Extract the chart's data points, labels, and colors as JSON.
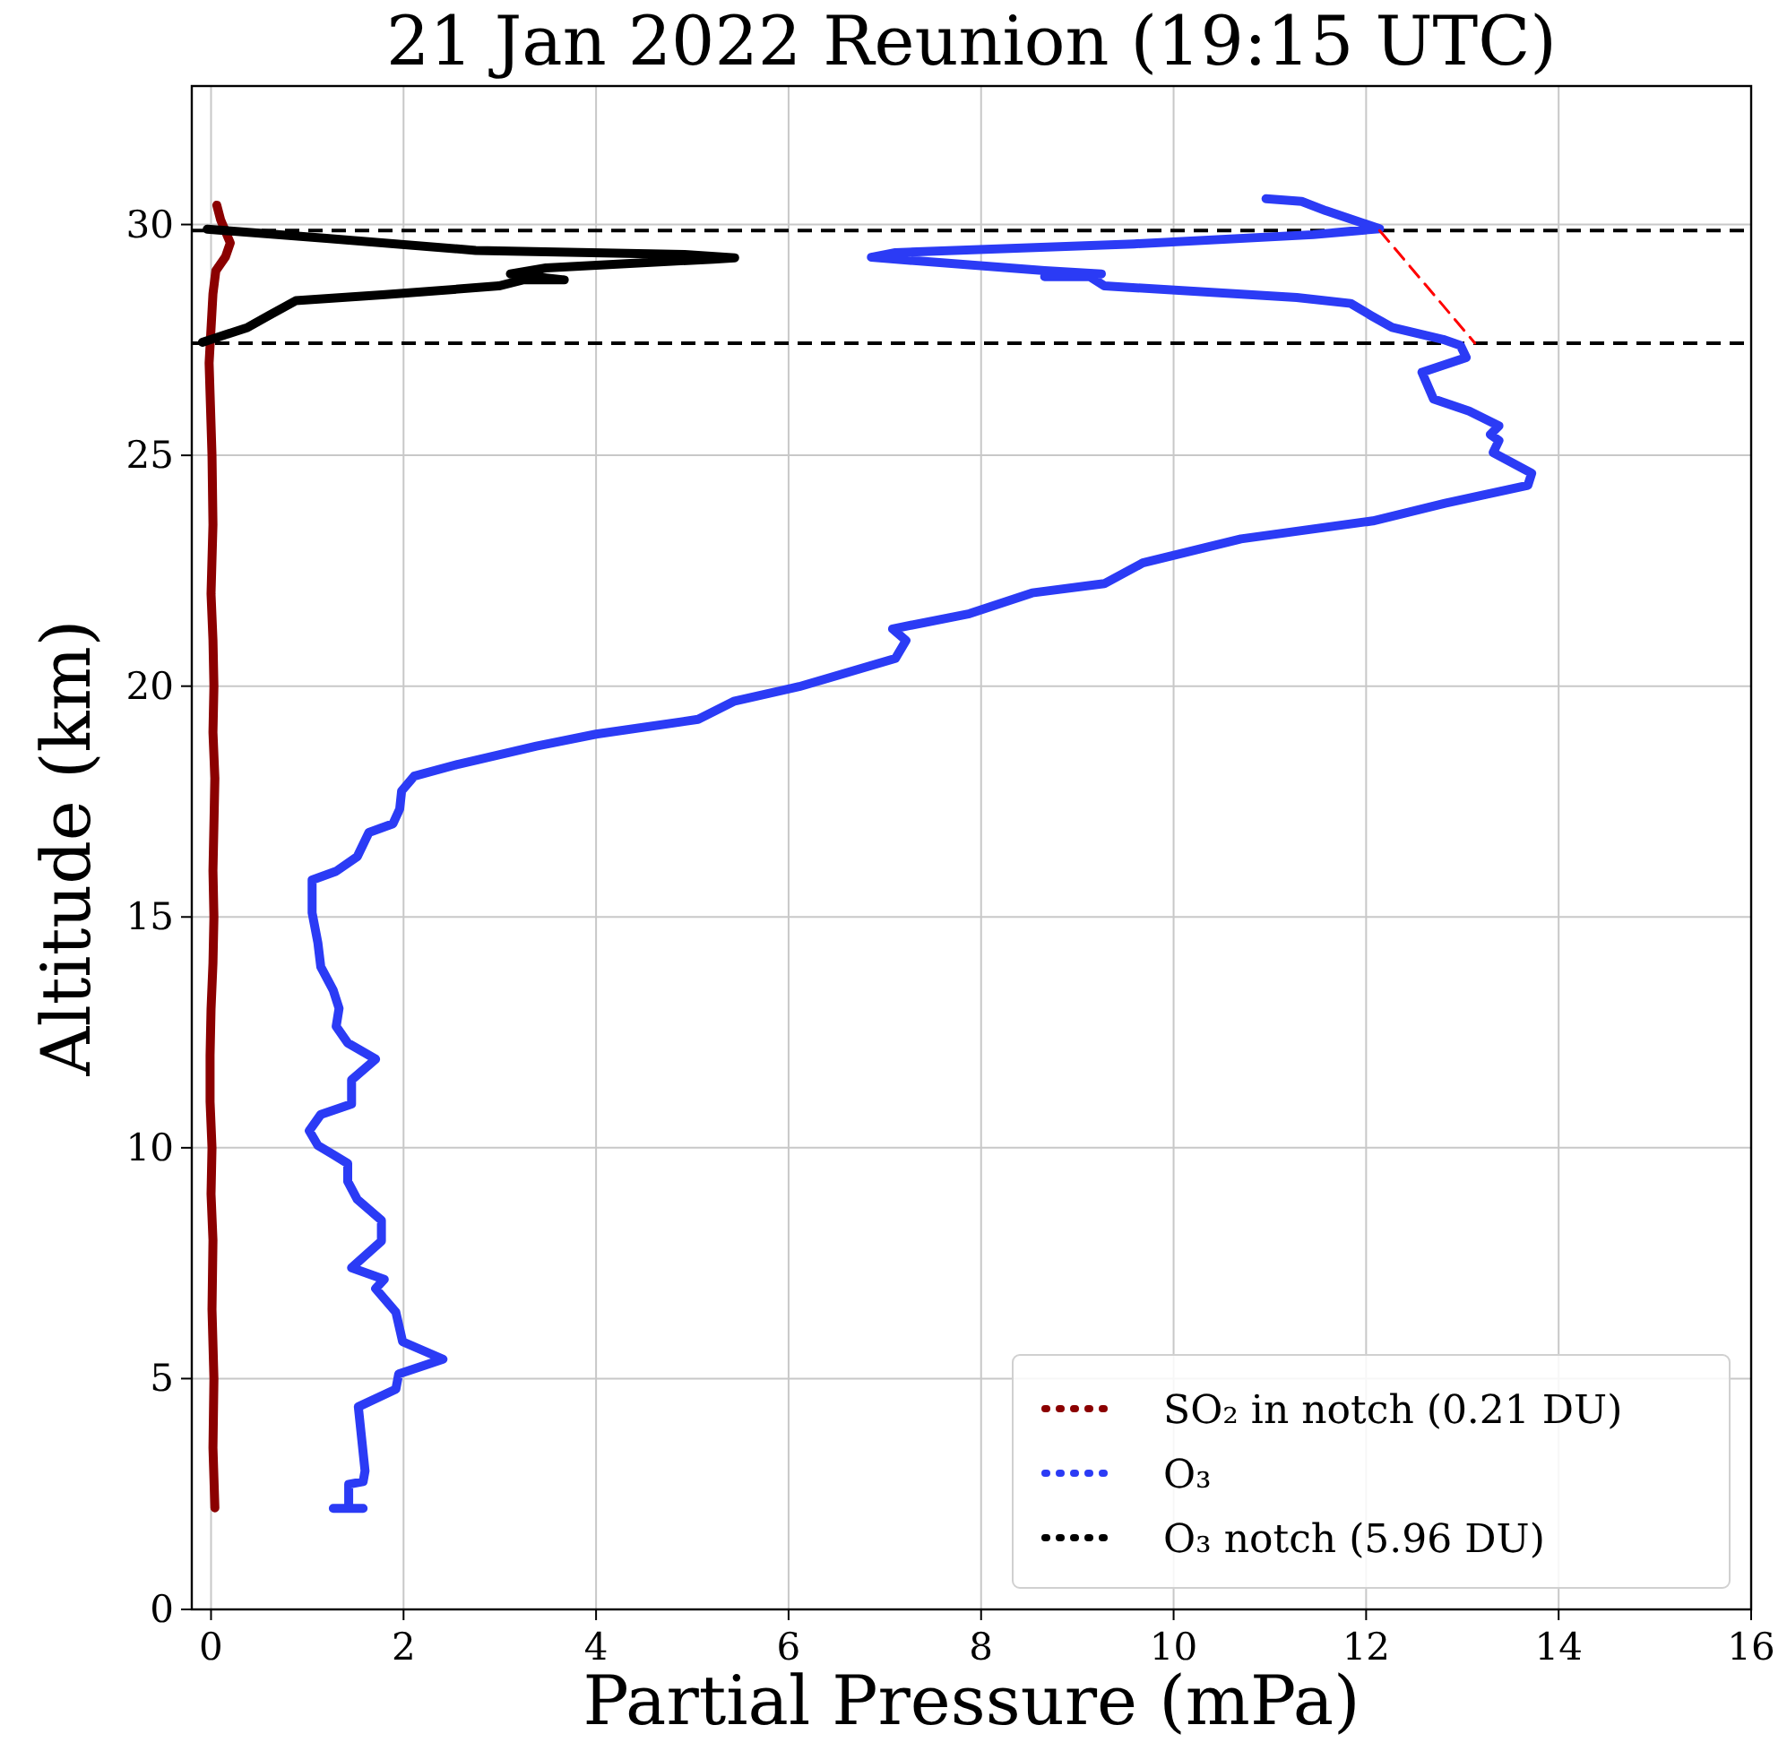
{
  "chart_data": {
    "type": "line",
    "title": "21 Jan 2022 Reunion (19:15 UTC)",
    "xlabel": "Partial Pressure (mPa)",
    "ylabel": "Altitude (km)",
    "xlim": [
      -0.2,
      16
    ],
    "xticks": [
      0,
      2,
      4,
      6,
      8,
      10,
      12,
      14,
      16
    ],
    "ylim": [
      0,
      33
    ],
    "yticks": [
      0,
      5,
      10,
      15,
      20,
      25,
      30
    ],
    "grid": true,
    "legend": "bottom right",
    "ref_lines": [
      {
        "axis": "y",
        "value": 29.87,
        "color": "#000000",
        "line_style": "dashed"
      },
      {
        "axis": "y",
        "value": 27.43,
        "color": "#000000",
        "line_style": "dashed"
      }
    ],
    "series": [
      {
        "name": "SO₂ in notch (0.21 DU)",
        "color": "#8b0000",
        "x": [
          0.04,
          0.02,
          0.03,
          0.01,
          0.02,
          0.0,
          0.01,
          -0.01,
          -0.01,
          0.0,
          0.02,
          0.03,
          0.02,
          0.03,
          0.04,
          0.02,
          0.03,
          0.02,
          0.0,
          0.02,
          0.01,
          -0.02,
          0.02,
          0.05,
          0.15,
          0.2,
          0.1,
          0.06
        ],
        "values": [
          2.2,
          3.5,
          5.0,
          6.5,
          8.0,
          9.0,
          10.0,
          11.0,
          12.0,
          13.0,
          14.0,
          15.0,
          16.0,
          17.0,
          18.0,
          19.0,
          20.0,
          21.0,
          22.0,
          23.5,
          25.0,
          27.0,
          28.5,
          29.0,
          29.3,
          29.6,
          30.1,
          30.42
        ]
      },
      {
        "name": "O₃",
        "color": "#2b3bf5",
        "x": [
          1.27,
          1.58,
          1.43,
          1.43,
          1.58,
          1.6,
          1.53,
          1.92,
          1.95,
          2.41,
          1.99,
          1.92,
          1.71,
          1.8,
          1.46,
          1.77,
          1.77,
          1.52,
          1.42,
          1.42,
          1.27,
          1.11,
          1.02,
          1.14,
          1.46,
          1.46,
          1.71,
          1.42,
          1.3,
          1.33,
          1.27,
          1.14,
          1.11,
          1.05,
          1.05,
          1.3,
          1.52,
          1.64,
          1.89,
          1.96,
          1.98,
          2.11,
          2.57,
          3.38,
          4.0,
          5.06,
          5.43,
          6.11,
          7.11,
          7.22,
          7.08,
          7.88,
          8.53,
          9.28,
          9.68,
          10.7,
          12.07,
          12.82,
          13.68,
          13.72,
          13.32,
          13.38,
          13.29,
          13.38,
          13.07,
          12.7,
          12.58,
          13.04,
          12.98,
          12.8,
          12.27,
          12.05,
          11.84,
          11.28,
          9.28,
          9.13,
          8.66,
          9.25,
          8.66,
          6.86,
          7.11,
          9.59,
          11.45,
          12.14,
          11.58,
          11.33,
          10.96
        ],
        "values": [
          2.19,
          2.19,
          2.19,
          2.71,
          2.77,
          3.0,
          4.39,
          4.77,
          5.1,
          5.42,
          5.8,
          6.44,
          6.95,
          7.15,
          7.4,
          7.98,
          8.43,
          8.88,
          9.27,
          9.66,
          9.85,
          10.05,
          10.37,
          10.72,
          10.95,
          11.47,
          11.92,
          12.27,
          12.63,
          13.02,
          13.41,
          13.92,
          14.44,
          15.09,
          15.8,
          15.99,
          16.31,
          16.83,
          17.02,
          17.34,
          17.73,
          18.05,
          18.31,
          18.7,
          18.96,
          19.28,
          19.67,
          19.99,
          20.6,
          20.99,
          21.24,
          21.57,
          22.02,
          22.22,
          22.67,
          23.19,
          23.58,
          23.96,
          24.35,
          24.61,
          25.06,
          25.32,
          25.45,
          25.64,
          25.96,
          26.22,
          26.8,
          27.12,
          27.38,
          27.51,
          27.77,
          28.03,
          28.29,
          28.42,
          28.67,
          28.87,
          28.87,
          28.93,
          29.0,
          29.29,
          29.39,
          29.58,
          29.78,
          29.91,
          30.3,
          30.5,
          30.56
        ]
      },
      {
        "name": "O₃ notch (5.96 DU)",
        "color": "#000000",
        "x": [
          -0.09,
          0.38,
          0.6,
          0.88,
          1.81,
          2.99,
          3.24,
          3.67,
          3.11,
          3.48,
          5.22,
          5.44,
          4.92,
          2.75,
          1.2,
          -0.04
        ],
        "values": [
          27.45,
          27.77,
          28.03,
          28.35,
          28.48,
          28.67,
          28.8,
          28.8,
          28.93,
          29.06,
          29.25,
          29.28,
          29.35,
          29.44,
          29.7,
          29.9
        ]
      },
      {
        "color": "#ff0000",
        "line_style": "dashed",
        "x": [
          12.14,
          13.13
        ],
        "values": [
          29.87,
          27.43
        ]
      }
    ]
  }
}
